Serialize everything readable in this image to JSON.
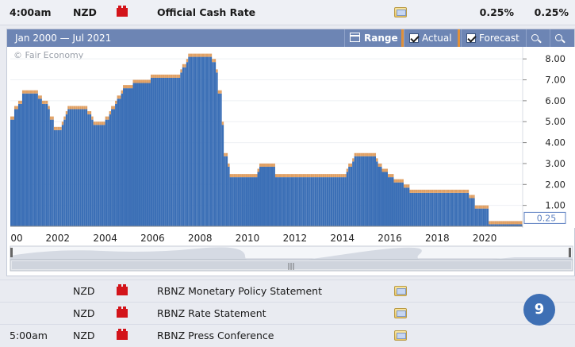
{
  "top_event": {
    "time": "4:00am",
    "currency": "NZD",
    "title": "Official Cash Rate",
    "actual": "0.25%",
    "forecast": "0.25%",
    "impact_icon": "high-impact-icon",
    "detail_icon": "folder-icon"
  },
  "toolbar": {
    "range_text": "Jan 2000 — Jul 2021",
    "range_label": "Range",
    "actual_label": "Actual",
    "forecast_label": "Forecast"
  },
  "copyright": "© Fair Economy",
  "colors": {
    "actual": "#3b6fb6",
    "forecast": "#e0a064",
    "toolbar": "#6d85b4",
    "impact": "#d3141a"
  },
  "chart_data": {
    "type": "bar",
    "x_ticks": [
      "00",
      "2002",
      "2004",
      "2006",
      "2008",
      "2010",
      "2012",
      "2014",
      "2016",
      "2018",
      "2020"
    ],
    "y_ticks": [
      "1.00",
      "2.00",
      "3.00",
      "4.00",
      "5.00",
      "6.00",
      "7.00",
      "8.00"
    ],
    "last_value_label": "0.25",
    "ylim": [
      0,
      8.5
    ],
    "xlim": [
      "2000-01",
      "2021-07"
    ],
    "series": [
      {
        "name": "Actual",
        "segments": [
          [
            "2000-01",
            5.25
          ],
          [
            "2000-03",
            5.75
          ],
          [
            "2000-05",
            6.0
          ],
          [
            "2000-07",
            6.5
          ],
          [
            "2001-03",
            6.25
          ],
          [
            "2001-05",
            6.0
          ],
          [
            "2001-08",
            5.75
          ],
          [
            "2001-09",
            5.25
          ],
          [
            "2001-11",
            4.75
          ],
          [
            "2002-03",
            5.0
          ],
          [
            "2002-04",
            5.25
          ],
          [
            "2002-05",
            5.5
          ],
          [
            "2002-06",
            5.75
          ],
          [
            "2003-04",
            5.5
          ],
          [
            "2003-06",
            5.25
          ],
          [
            "2003-07",
            5.0
          ],
          [
            "2004-01",
            5.25
          ],
          [
            "2004-03",
            5.5
          ],
          [
            "2004-04",
            5.75
          ],
          [
            "2004-06",
            6.0
          ],
          [
            "2004-07",
            6.25
          ],
          [
            "2004-09",
            6.5
          ],
          [
            "2004-10",
            6.75
          ],
          [
            "2005-03",
            7.0
          ],
          [
            "2005-12",
            7.25
          ],
          [
            "2007-03",
            7.5
          ],
          [
            "2007-04",
            7.75
          ],
          [
            "2007-06",
            8.0
          ],
          [
            "2007-07",
            8.25
          ],
          [
            "2008-07",
            8.0
          ],
          [
            "2008-09",
            7.5
          ],
          [
            "2008-10",
            6.5
          ],
          [
            "2008-12",
            5.0
          ],
          [
            "2009-01",
            3.5
          ],
          [
            "2009-03",
            3.0
          ],
          [
            "2009-04",
            2.5
          ],
          [
            "2010-06",
            2.75
          ],
          [
            "2010-07",
            3.0
          ],
          [
            "2011-03",
            2.5
          ],
          [
            "2014-03",
            2.75
          ],
          [
            "2014-04",
            3.0
          ],
          [
            "2014-06",
            3.25
          ],
          [
            "2014-07",
            3.5
          ],
          [
            "2015-06",
            3.25
          ],
          [
            "2015-07",
            3.0
          ],
          [
            "2015-09",
            2.75
          ],
          [
            "2015-12",
            2.5
          ],
          [
            "2016-03",
            2.25
          ],
          [
            "2016-08",
            2.0
          ],
          [
            "2016-11",
            1.75
          ],
          [
            "2019-05",
            1.5
          ],
          [
            "2019-08",
            1.0
          ],
          [
            "2020-03",
            0.25
          ],
          [
            "2021-07",
            0.25
          ]
        ]
      },
      {
        "name": "Forecast",
        "note_color": "#e0a064"
      }
    ]
  },
  "events": [
    {
      "time": "",
      "currency": "NZD",
      "title": "RBNZ Monetary Policy Statement"
    },
    {
      "time": "",
      "currency": "NZD",
      "title": "RBNZ Rate Statement"
    },
    {
      "time": "5:00am",
      "currency": "NZD",
      "title": "RBNZ Press Conference"
    }
  ],
  "badge": "9"
}
